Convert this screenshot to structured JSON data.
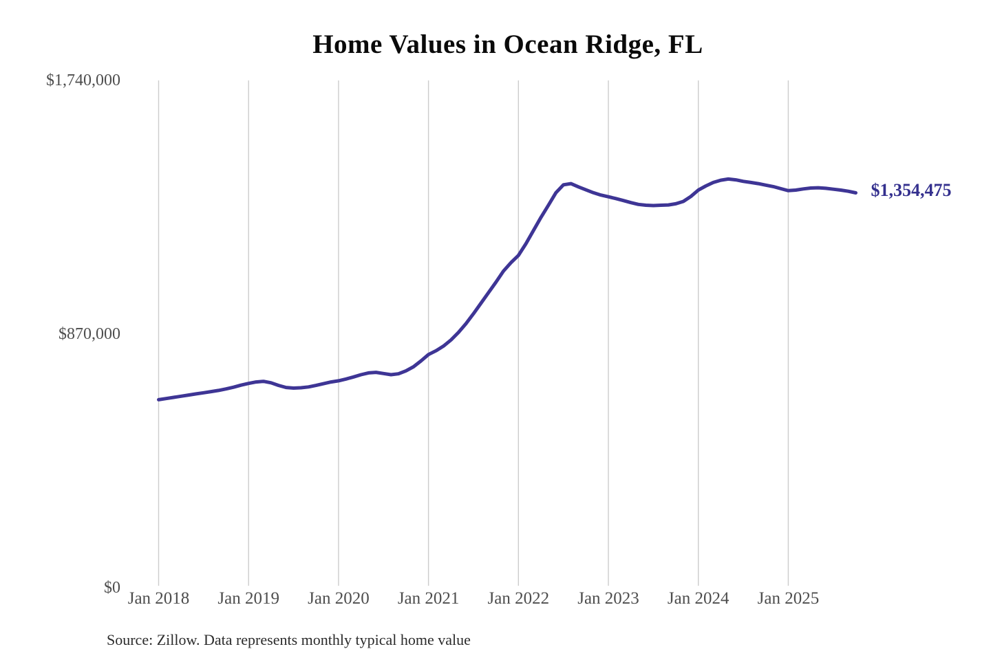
{
  "chart": {
    "title": "Home Values in Ocean Ridge, FL",
    "source_note": "Source: Zillow. Data represents monthly typical home value",
    "end_label": "$1,354,475",
    "line_color": "#3e3595",
    "end_label_color": "#34308e",
    "grid_color": "#cccccc",
    "axis_text_color": "#4d4d4d"
  },
  "chart_data": {
    "type": "line",
    "title": "Home Values in Ocean Ridge, FL",
    "xlabel": "",
    "ylabel": "",
    "ylim": [
      0,
      1740000
    ],
    "y_ticks": [
      0,
      870000,
      1740000
    ],
    "y_tick_labels": [
      "$0",
      "$870,000",
      "$1,740,000"
    ],
    "x_tick_labels": [
      "Jan 2018",
      "Jan 2019",
      "Jan 2020",
      "Jan 2021",
      "Jan 2022",
      "Jan 2023",
      "Jan 2024",
      "Jan 2025"
    ],
    "grid": "vertical-yearly",
    "legend_position": "none",
    "series_name": "Monthly typical home value (USD)",
    "last_value": 1354475,
    "last_value_label": "$1,354,475",
    "x": [
      "2018-01",
      "2018-02",
      "2018-03",
      "2018-04",
      "2018-05",
      "2018-06",
      "2018-07",
      "2018-08",
      "2018-09",
      "2018-10",
      "2018-11",
      "2018-12",
      "2019-01",
      "2019-02",
      "2019-03",
      "2019-04",
      "2019-05",
      "2019-06",
      "2019-07",
      "2019-08",
      "2019-09",
      "2019-10",
      "2019-11",
      "2019-12",
      "2020-01",
      "2020-02",
      "2020-03",
      "2020-04",
      "2020-05",
      "2020-06",
      "2020-07",
      "2020-08",
      "2020-09",
      "2020-10",
      "2020-11",
      "2020-12",
      "2021-01",
      "2021-02",
      "2021-03",
      "2021-04",
      "2021-05",
      "2021-06",
      "2021-07",
      "2021-08",
      "2021-09",
      "2021-10",
      "2021-11",
      "2021-12",
      "2022-01",
      "2022-02",
      "2022-03",
      "2022-04",
      "2022-05",
      "2022-06",
      "2022-07",
      "2022-08",
      "2022-09",
      "2022-10",
      "2022-11",
      "2022-12",
      "2023-01",
      "2023-02",
      "2023-03",
      "2023-04",
      "2023-05",
      "2023-06",
      "2023-07",
      "2023-08",
      "2023-09",
      "2023-10",
      "2023-11",
      "2023-12",
      "2024-01",
      "2024-02",
      "2024-03",
      "2024-04",
      "2024-05",
      "2024-06",
      "2024-07",
      "2024-08",
      "2024-09",
      "2024-10",
      "2024-11",
      "2024-12",
      "2025-01",
      "2025-02",
      "2025-03",
      "2025-04",
      "2025-05",
      "2025-06",
      "2025-07",
      "2025-08",
      "2025-09",
      "2025-10"
    ],
    "values": [
      645000,
      649000,
      653000,
      657000,
      661000,
      665000,
      669000,
      673000,
      677000,
      682000,
      688000,
      695000,
      701000,
      706000,
      708000,
      703000,
      694000,
      687000,
      685000,
      686000,
      689000,
      694000,
      700000,
      706000,
      710000,
      716000,
      723000,
      731000,
      737000,
      739000,
      735000,
      731000,
      734000,
      744000,
      758000,
      778000,
      800000,
      813000,
      829000,
      850000,
      876000,
      906000,
      940000,
      976000,
      1012000,
      1048000,
      1086000,
      1115000,
      1140000,
      1180000,
      1225000,
      1270000,
      1312000,
      1355000,
      1382000,
      1386000,
      1375000,
      1365000,
      1355000,
      1347000,
      1341000,
      1335000,
      1328000,
      1321000,
      1315000,
      1312000,
      1311000,
      1312000,
      1313000,
      1317000,
      1325000,
      1342000,
      1364000,
      1378000,
      1390000,
      1398000,
      1402000,
      1399000,
      1394000,
      1390000,
      1386000,
      1381000,
      1376000,
      1369000,
      1362000,
      1364000,
      1368000,
      1371000,
      1372000,
      1370000,
      1367000,
      1364000,
      1360000,
      1354475
    ]
  }
}
